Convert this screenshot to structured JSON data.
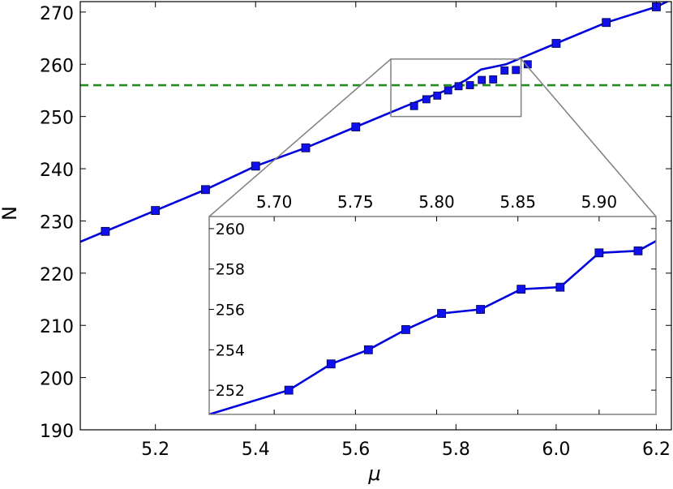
{
  "chart_data": [
    {
      "type": "line",
      "xlabel": "μ",
      "ylabel": "N",
      "xlim": [
        5.05,
        6.23
      ],
      "ylim": [
        190,
        272
      ],
      "xticks": [
        5.2,
        5.4,
        5.6,
        5.8,
        6.0,
        6.2
      ],
      "xtick_labels": [
        "5.2",
        "5.4",
        "5.6",
        "5.8",
        "6.0",
        "6.2"
      ],
      "yticks": [
        190,
        200,
        210,
        220,
        230,
        240,
        250,
        260,
        270
      ],
      "ytick_labels": [
        "190",
        "200",
        "210",
        "220",
        "230",
        "240",
        "250",
        "260",
        "270"
      ],
      "grid": false,
      "line_color": "#0000dd",
      "marker_color": "#1010ee",
      "series": [
        {
          "x": [
            5.05,
            5.1,
            5.2,
            5.3,
            5.4,
            5.5,
            5.6,
            5.7,
            5.78,
            5.8,
            5.82,
            5.85,
            5.9,
            6.0,
            6.1,
            6.2,
            6.23
          ],
          "y": [
            226,
            228,
            232,
            236,
            240.5,
            244,
            248,
            252,
            255,
            256,
            257,
            259,
            260,
            264,
            268,
            271,
            272.4
          ],
          "markers": [
            false,
            true,
            true,
            true,
            true,
            true,
            true,
            false,
            false,
            false,
            false,
            false,
            false,
            true,
            true,
            true,
            false
          ]
        }
      ],
      "hline": {
        "y": 256,
        "color": "#228b22",
        "style": "dashed"
      },
      "zoom_box": {
        "xlim": [
          5.67,
          5.93
        ],
        "ylim": [
          250,
          261
        ],
        "color": "#808080"
      }
    },
    {
      "type": "line",
      "role": "inset",
      "xlim": [
        5.66,
        5.935
      ],
      "ylim": [
        250.8,
        260.6
      ],
      "xticks": [
        5.7,
        5.75,
        5.8,
        5.85,
        5.9
      ],
      "xtick_labels": [
        "5.70",
        "5.75",
        "5.80",
        "5.85",
        "5.90"
      ],
      "yticks": [
        252,
        254,
        256,
        258,
        260
      ],
      "ytick_labels": [
        "252",
        "254",
        "256",
        "258",
        "260"
      ],
      "xaxis_position": "top",
      "grid": false,
      "series": [
        {
          "x": [
            5.66,
            5.709,
            5.735,
            5.758,
            5.781,
            5.803,
            5.827,
            5.852,
            5.876,
            5.9,
            5.924,
            5.949,
            5.935
          ],
          "y": [
            250.8,
            252.0,
            253.3,
            254.0,
            255.0,
            255.8,
            256.0,
            257.0,
            257.1,
            258.8,
            258.9,
            260.0,
            260.6
          ],
          "markers": [
            false,
            true,
            true,
            true,
            true,
            true,
            true,
            true,
            true,
            true,
            true,
            true,
            false
          ]
        }
      ]
    }
  ]
}
